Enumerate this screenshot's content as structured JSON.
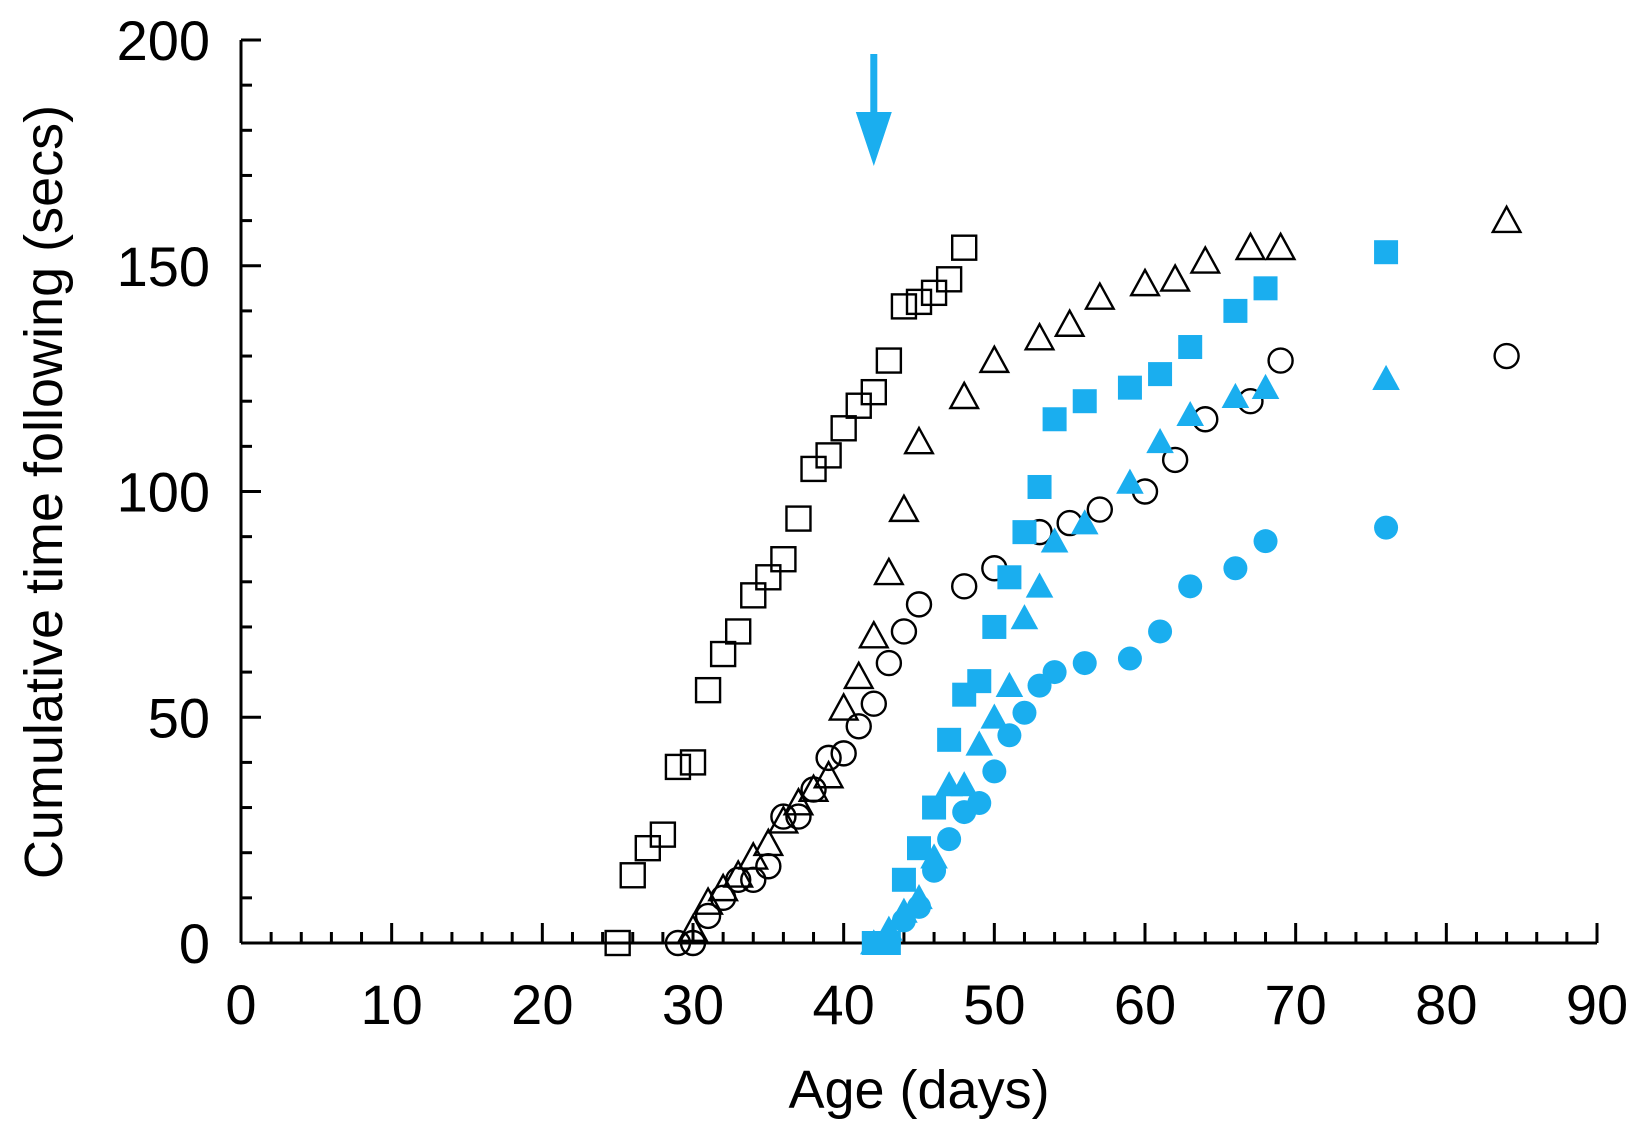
{
  "chart_data": {
    "type": "scatter",
    "title": "",
    "xlabel": "Age (days)",
    "ylabel": "Cumulative time following (secs)",
    "xlim": [
      0,
      90
    ],
    "ylim": [
      0,
      200
    ],
    "x_ticks": [
      0,
      10,
      20,
      30,
      40,
      50,
      60,
      70,
      80,
      90
    ],
    "y_ticks": [
      0,
      50,
      100,
      150,
      200
    ],
    "x_tick_labels": [
      "0",
      "10",
      "20",
      "30",
      "40",
      "50",
      "60",
      "70",
      "80",
      "90"
    ],
    "y_tick_labels": [
      "0",
      "50",
      "100",
      "150",
      "200"
    ],
    "grid": false,
    "colors": {
      "black": "#000000",
      "blue": "#1aaeef"
    },
    "annotations": [
      {
        "type": "arrow",
        "x": 42,
        "direction": "down",
        "color": "#1aaeef"
      }
    ],
    "series": [
      {
        "name": "open squares",
        "marker": "square",
        "filled": false,
        "color": "#000000",
        "points": [
          [
            25,
            0
          ],
          [
            26,
            15
          ],
          [
            27,
            21
          ],
          [
            28,
            24
          ],
          [
            29,
            39
          ],
          [
            30,
            40
          ],
          [
            31,
            56
          ],
          [
            32,
            64
          ],
          [
            33,
            69
          ],
          [
            34,
            77
          ],
          [
            35,
            81
          ],
          [
            36,
            85
          ],
          [
            37,
            94
          ],
          [
            38,
            105
          ],
          [
            39,
            108
          ],
          [
            40,
            114
          ],
          [
            41,
            119
          ],
          [
            42,
            122
          ],
          [
            43,
            129
          ],
          [
            44,
            141
          ],
          [
            45,
            142
          ],
          [
            46,
            144
          ],
          [
            47,
            147
          ],
          [
            48,
            154
          ]
        ]
      },
      {
        "name": "open triangles",
        "marker": "triangle",
        "filled": false,
        "color": "#000000",
        "points": [
          [
            30,
            3
          ],
          [
            31,
            9
          ],
          [
            32,
            12
          ],
          [
            33,
            15
          ],
          [
            34,
            19
          ],
          [
            35,
            22
          ],
          [
            36,
            27
          ],
          [
            37,
            31
          ],
          [
            38,
            34
          ],
          [
            39,
            37
          ],
          [
            40,
            52
          ],
          [
            41,
            59
          ],
          [
            42,
            68
          ],
          [
            43,
            82
          ],
          [
            44,
            96
          ],
          [
            45,
            111
          ],
          [
            48,
            121
          ],
          [
            50,
            129
          ],
          [
            53,
            134
          ],
          [
            55,
            137
          ],
          [
            57,
            143
          ],
          [
            60,
            146
          ],
          [
            62,
            147
          ],
          [
            64,
            151
          ],
          [
            67,
            154
          ],
          [
            69,
            154
          ],
          [
            84,
            160
          ]
        ]
      },
      {
        "name": "open circles",
        "marker": "circle",
        "filled": false,
        "color": "#000000",
        "points": [
          [
            29,
            0
          ],
          [
            30,
            0
          ],
          [
            31,
            6
          ],
          [
            32,
            10
          ],
          [
            33,
            14
          ],
          [
            34,
            14
          ],
          [
            35,
            17
          ],
          [
            36,
            28
          ],
          [
            37,
            28
          ],
          [
            38,
            34
          ],
          [
            39,
            41
          ],
          [
            40,
            42
          ],
          [
            41,
            48
          ],
          [
            42,
            53
          ],
          [
            43,
            62
          ],
          [
            44,
            69
          ],
          [
            45,
            75
          ],
          [
            48,
            79
          ],
          [
            50,
            83
          ],
          [
            53,
            91
          ],
          [
            55,
            93
          ],
          [
            57,
            96
          ],
          [
            60,
            100
          ],
          [
            62,
            107
          ],
          [
            64,
            116
          ],
          [
            67,
            120
          ],
          [
            69,
            129
          ],
          [
            84,
            130
          ]
        ]
      },
      {
        "name": "filled squares",
        "marker": "square",
        "filled": true,
        "color": "#1aaeef",
        "points": [
          [
            42,
            0
          ],
          [
            43,
            0
          ],
          [
            44,
            14
          ],
          [
            45,
            21
          ],
          [
            46,
            30
          ],
          [
            47,
            45
          ],
          [
            48,
            55
          ],
          [
            49,
            58
          ],
          [
            50,
            70
          ],
          [
            51,
            81
          ],
          [
            52,
            91
          ],
          [
            53,
            101
          ],
          [
            54,
            116
          ],
          [
            56,
            120
          ],
          [
            59,
            123
          ],
          [
            61,
            126
          ],
          [
            63,
            132
          ],
          [
            66,
            140
          ],
          [
            68,
            145
          ],
          [
            76,
            153
          ]
        ]
      },
      {
        "name": "filled triangles",
        "marker": "triangle",
        "filled": true,
        "color": "#1aaeef",
        "points": [
          [
            42,
            0
          ],
          [
            43,
            3
          ],
          [
            44,
            7
          ],
          [
            45,
            10
          ],
          [
            46,
            19
          ],
          [
            47,
            35
          ],
          [
            48,
            35
          ],
          [
            49,
            44
          ],
          [
            50,
            50
          ],
          [
            51,
            57
          ],
          [
            52,
            72
          ],
          [
            53,
            79
          ],
          [
            54,
            89
          ],
          [
            56,
            93
          ],
          [
            59,
            102
          ],
          [
            61,
            111
          ],
          [
            63,
            117
          ],
          [
            66,
            121
          ],
          [
            68,
            123
          ],
          [
            76,
            125
          ]
        ]
      },
      {
        "name": "filled circles",
        "marker": "circle",
        "filled": true,
        "color": "#1aaeef",
        "points": [
          [
            43,
            0
          ],
          [
            44,
            5
          ],
          [
            45,
            8
          ],
          [
            46,
            16
          ],
          [
            47,
            23
          ],
          [
            48,
            29
          ],
          [
            49,
            31
          ],
          [
            50,
            38
          ],
          [
            51,
            46
          ],
          [
            52,
            51
          ],
          [
            53,
            57
          ],
          [
            54,
            60
          ],
          [
            56,
            62
          ],
          [
            59,
            63
          ],
          [
            61,
            69
          ],
          [
            63,
            79
          ],
          [
            66,
            83
          ],
          [
            68,
            89
          ],
          [
            76,
            92
          ]
        ]
      }
    ]
  }
}
